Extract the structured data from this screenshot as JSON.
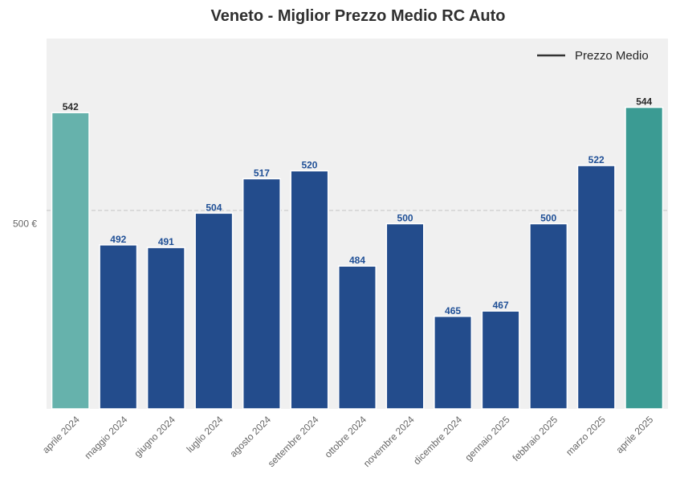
{
  "chart_data": {
    "type": "bar",
    "title": "Veneto - Miglior Prezzo Medio RC Auto",
    "xlabel": "",
    "ylabel": "",
    "categories": [
      "aprile 2024",
      "maggio 2024",
      "giugno 2024",
      "luglio 2024",
      "agosto 2024",
      "settembre 2024",
      "ottobre 2024",
      "novembre 2024",
      "dicembre 2024",
      "gennaio 2025",
      "febbraio 2025",
      "marzo 2025",
      "aprile 2025"
    ],
    "values": [
      542,
      492,
      491,
      504,
      517,
      520,
      484,
      500,
      465,
      467,
      500,
      522,
      544
    ],
    "value_labels": [
      "542",
      "492",
      "491",
      "504",
      "517",
      "520",
      "484",
      "500",
      "465",
      "467",
      "500",
      "522",
      "544"
    ],
    "ylim": [
      430,
      570
    ],
    "yticks": [
      500
    ],
    "ytick_labels": [
      "500 €"
    ],
    "reference_line": {
      "y": 505,
      "style": "dashed"
    },
    "grid": false,
    "legend": {
      "placement": "top-right",
      "entries": [
        "Prezzo Medio"
      ]
    },
    "colors": {
      "plot_background": "#f0f0f0",
      "bar_default": "#234c8c",
      "bar_first": "#66b2ac",
      "bar_last": "#3b9b93",
      "label_default": "#1f4f96",
      "label_highlight": "#2a2a2a",
      "reference_line": "#c4c4c4",
      "legend_line": "#333333"
    }
  }
}
